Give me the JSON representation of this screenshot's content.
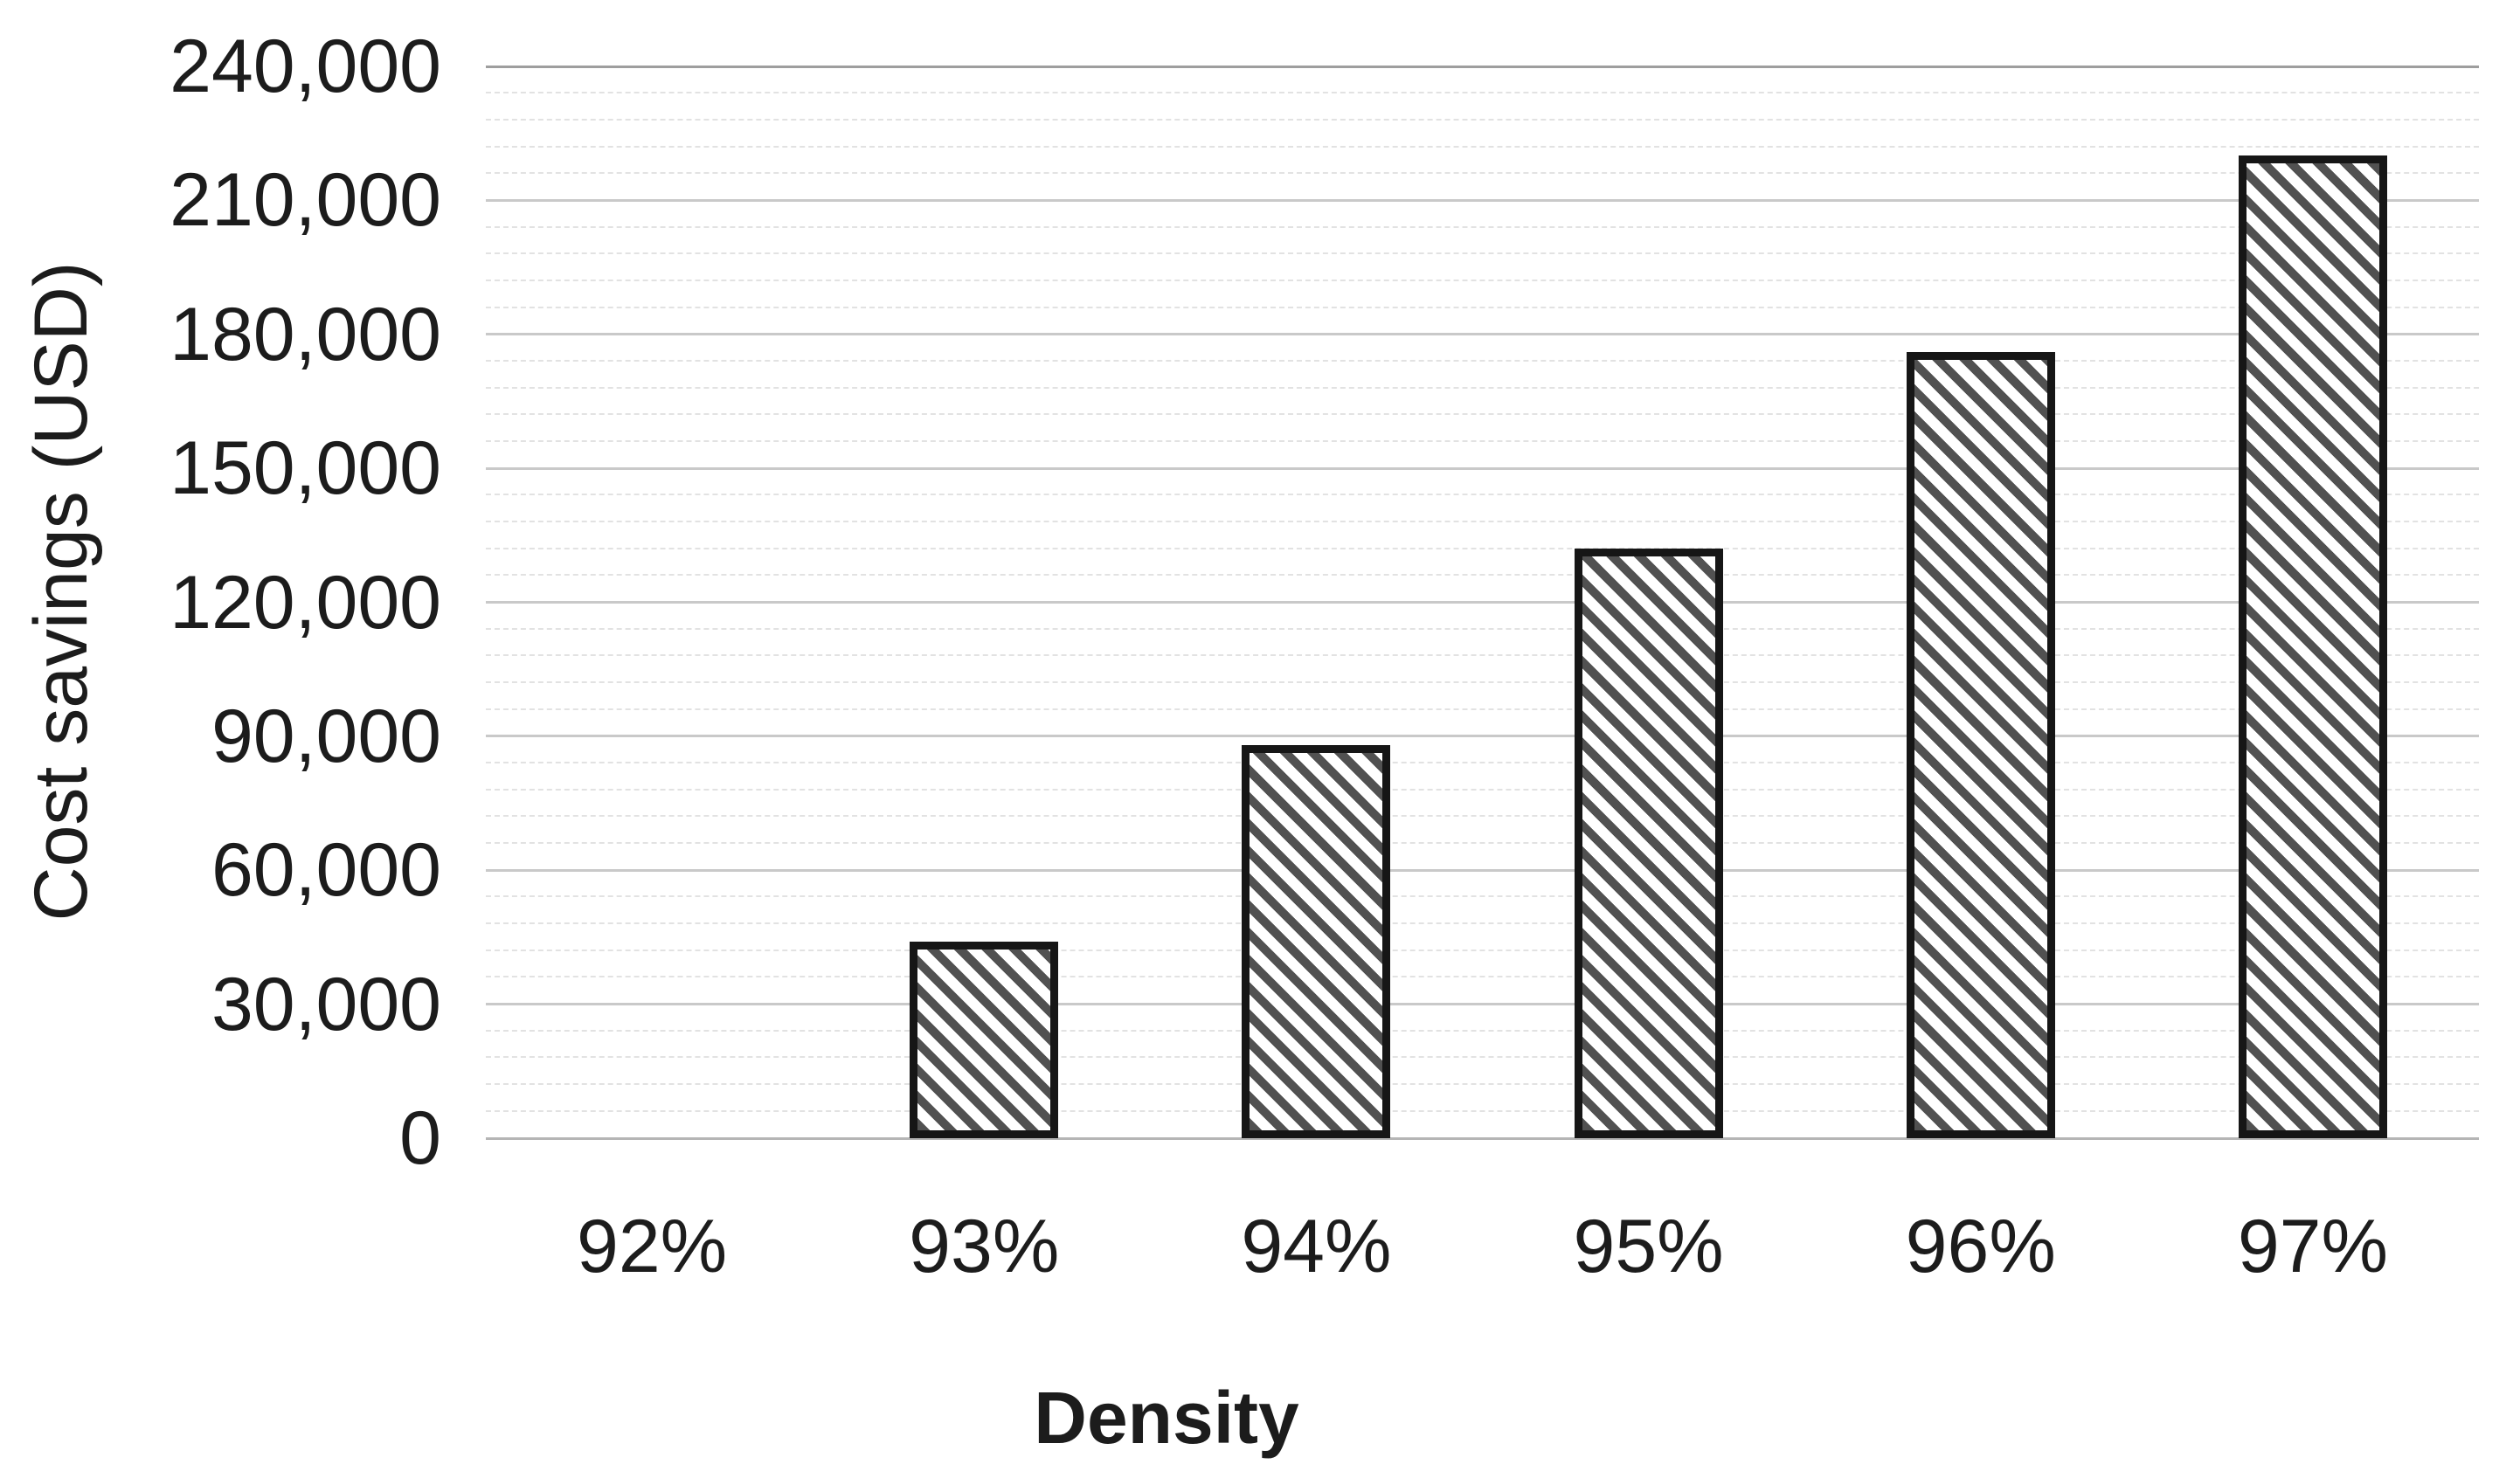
{
  "chart_data": {
    "type": "bar",
    "title": "",
    "xlabel": "Density",
    "ylabel": "Cost savings (USD)",
    "categories": [
      "92%",
      "93%",
      "94%",
      "95%",
      "96%",
      "97%"
    ],
    "values": [
      0,
      44000,
      88000,
      132000,
      176000,
      220000
    ],
    "ylim": [
      0,
      240000
    ],
    "y_major_step": 30000,
    "y_minor_step": 6000,
    "y_tick_labels": [
      "0",
      "30,000",
      "60,000",
      "90,000",
      "120,000",
      "150,000",
      "180,000",
      "210,000",
      "240,000"
    ],
    "grid": "horizontal major + minor, no vertical gridlines",
    "legend": "none",
    "axis_lines": "none",
    "bar_style": {
      "fill_background": "#ffffff",
      "hatch": "diagonal-down-stripes",
      "stripe_color": "#515151",
      "border_color": "#161616"
    },
    "grid_colors": {
      "minor": "#e2e2e2",
      "major": "#c9c9c9",
      "top": "#9e9e9e",
      "baseline": "#b5b5b5"
    },
    "text_color": "#1c1c1c"
  }
}
